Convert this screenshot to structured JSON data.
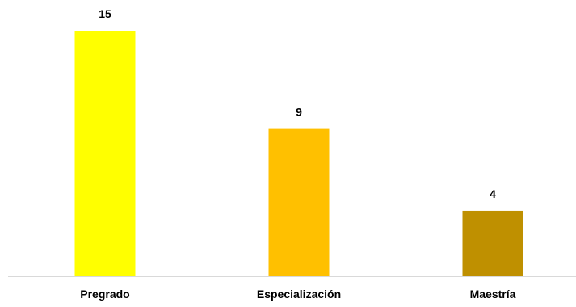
{
  "chart_data": {
    "type": "bar",
    "categories": [
      "Pregrado",
      "Especialización",
      "Maestría"
    ],
    "values": [
      15,
      9,
      4
    ],
    "data_labels": [
      "15",
      "9",
      "4"
    ],
    "colors": [
      "#ffff00",
      "#ffc000",
      "#bf9000"
    ],
    "axis_color": "#d9d9d9",
    "ylim": [
      0,
      15
    ],
    "grid": false,
    "legend": "none"
  }
}
